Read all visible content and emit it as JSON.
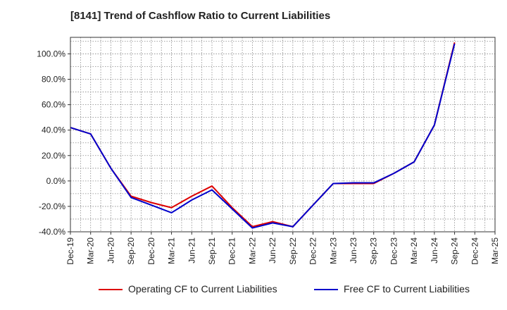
{
  "chart_data": {
    "type": "line",
    "title": "[8141]  Trend of Cashflow Ratio to Current Liabilities",
    "xlabel": "",
    "ylabel": "",
    "x_tick_labels": [
      "Dec-19",
      "Mar-20",
      "Jun-20",
      "Sep-20",
      "Dec-20",
      "Mar-21",
      "Jun-21",
      "Sep-21",
      "Dec-21",
      "Mar-22",
      "Jun-22",
      "Sep-22",
      "Dec-22",
      "Mar-23",
      "Jun-23",
      "Sep-23",
      "Dec-23",
      "Mar-24",
      "Jun-24",
      "Sep-24",
      "Dec-24",
      "Mar-25"
    ],
    "y_tick_labels": [
      "-40.0%",
      "-20.0%",
      "0.0%",
      "20.0%",
      "40.0%",
      "60.0%",
      "80.0%",
      "100.0%"
    ],
    "ylim": [
      -40,
      113
    ],
    "grid": true,
    "legend_position": "bottom",
    "x": [
      "Dec-19",
      "Mar-20",
      "Jun-20",
      "Sep-20",
      "Dec-20",
      "Mar-21",
      "Jun-21",
      "Sep-21",
      "Dec-21",
      "Mar-22",
      "Jun-22",
      "Sep-22",
      "Dec-22",
      "Mar-23",
      "Jun-23",
      "Sep-23",
      "Dec-23",
      "Mar-24",
      "Jun-24",
      "Sep-24"
    ],
    "series": [
      {
        "name": "Operating CF to Current Liabilities",
        "color": "#dd0000",
        "values": [
          42,
          37,
          10,
          -12,
          -17,
          -21,
          -12,
          -4,
          -21,
          -36,
          -32,
          -36,
          -19,
          -2,
          -2,
          -2,
          6,
          15,
          44,
          109
        ]
      },
      {
        "name": "Free CF to Current Liabilities",
        "color": "#0000cc",
        "values": [
          42,
          37,
          10,
          -13,
          -19,
          -25,
          -15,
          -7,
          -22,
          -37,
          -33,
          -36,
          -19,
          -2,
          -1.5,
          -1.5,
          6,
          15,
          44,
          108
        ]
      }
    ]
  }
}
